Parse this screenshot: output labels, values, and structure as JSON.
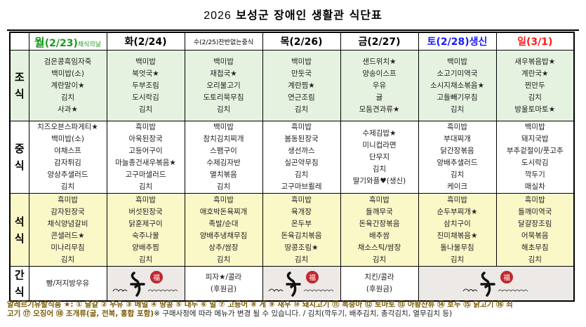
{
  "title": {
    "year": "2026",
    "text": "보성군 장애인 생활관 식단표"
  },
  "days": [
    {
      "day": "월",
      "date": "(2/23)",
      "note": "채식의날",
      "color": "#1a9a1a"
    },
    {
      "day": "화",
      "date": "(2/24)",
      "note": "",
      "color": "#000000"
    },
    {
      "day": "수",
      "date": "(2/25)",
      "note": "잔반없는중식",
      "color": "#000000"
    },
    {
      "day": "목",
      "date": "(2/26)",
      "note": "",
      "color": "#000000"
    },
    {
      "day": "금",
      "date": "(2/27)",
      "note": "",
      "color": "#000000"
    },
    {
      "day": "토",
      "date": "(2/28)",
      "note": "생신",
      "color": "#1a1aff"
    },
    {
      "day": "일",
      "date": "(3/1)",
      "note": "",
      "color": "#ff1a1a"
    }
  ],
  "meals": [
    {
      "label": "조식",
      "bg": "#e6f2e0",
      "menus": [
        [
          "검은콩흑임자죽",
          "백미밥(소)",
          "계란말이★",
          "김치",
          "사과★"
        ],
        [
          "백미밥",
          "북엇국★",
          "두부조림",
          "도시락김",
          "김치"
        ],
        [
          "백미밥",
          "재첩국★",
          "오리불고기",
          "도토리묵무침",
          "김치"
        ],
        [
          "백미밥",
          "만둣국",
          "계란찜★",
          "연근조림",
          "김치"
        ],
        [
          "샌드위치★",
          "양송이스프",
          "우유",
          "귤",
          "모둠견과류★"
        ],
        [
          "백미밥",
          "소고기미역국",
          "소시지채소볶음★",
          "고들빼기무침",
          "김치"
        ],
        [
          "새우볶음밥★",
          "계란국★",
          "찐만두",
          "김치",
          "방울토마토★"
        ]
      ]
    },
    {
      "label": "중식",
      "bg": "#ffffff",
      "menus": [
        [
          "치즈오븐스파게티★",
          "백미밥(소)",
          "야채스프",
          "감자튀김",
          "양상추샐러드",
          "김치"
        ],
        [
          "흑미밥",
          "아욱된장국",
          "고등어구이",
          "마늘종건새우볶음★",
          "고구마샐러드",
          "김치"
        ],
        [
          "백미밥",
          "참치김치찌개",
          "스팸구이",
          "수제김자반",
          "멸치볶음",
          "김치"
        ],
        [
          "흑미밥",
          "봄동된장국",
          "생선까스",
          "실곤약무침",
          "김치",
          "고구마브륄레"
        ],
        [
          "수제김밥★",
          "미니컵라면",
          "단무지",
          "김치",
          "딸기와플♥(생신)"
        ],
        [
          "흑미밥",
          "부대찌개",
          "닭간장볶음",
          "양배추샐러드",
          "김치",
          "케이크"
        ],
        [
          "백미밥",
          "돼지국밥",
          "부추겉절이/풋고추",
          "도시락김",
          "깍두기",
          "매실차"
        ]
      ]
    },
    {
      "label": "석식",
      "bg": "#fbf8c8",
      "menus": [
        [
          "흑미밥",
          "감자된장국",
          "채식양념갈비",
          "콘샐러드★",
          "미나리무침",
          "김치"
        ],
        [
          "흑미밥",
          "버섯된장국",
          "닭훈제구이",
          "숙주나물",
          "양배추찜",
          "김치"
        ],
        [
          "흑미밥",
          "애호박돈육찌개",
          "족발/순대",
          "양배추냉채무침",
          "상추/쌈장",
          "김치"
        ],
        [
          "흑미밥",
          "육개장",
          "온두부",
          "돈육김치볶음",
          "땅콩조림★",
          "김치"
        ],
        [
          "흑미밥",
          "들깨무국",
          "돈육간장볶음",
          "배추쌈",
          "채소스틱/쌈장",
          "김치"
        ],
        [
          "흑미밥",
          "순두부찌개★",
          "삼치구이",
          "진미채볶음★",
          "돌나물무침",
          "김치"
        ],
        [
          "흑미밥",
          "들깨미역국",
          "달걀장조림",
          "어묵볶음",
          "해초무침",
          "김치"
        ]
      ]
    },
    {
      "label": "간식",
      "snacks": [
        {
          "text": [
            "빵/저지방우유"
          ]
        },
        {
          "image": "blessing-calligraphy",
          "logo_text": "새해 복 많이 받으세요"
        },
        {
          "text": [
            "피자★/콜라",
            "(후원금)"
          ]
        },
        {
          "image": "blessing-calligraphy",
          "logo_text": "새해 복 많이 받으세요"
        },
        {
          "text": [
            "치킨/콜라",
            "(후원금)"
          ]
        },
        {
          "image": "blessing-calligraphy",
          "logo_text": "새해 복 많이 받으세요",
          "span": 2
        }
      ]
    }
  ],
  "footer": {
    "allergy_line1": "알레르기유발식품 ★: ① 달걀 ② 우유 ③ 메밀 ④ 땅콩 ⑤ 대두 ⑥ 밀 ⑦ 고등어 ⑧ 게 ⑨ 새우 ⑩ 돼지고기 ⑪ 복숭아 ⑫ 토마토 ⑬ 아황산류 ⑭ 호두 ⑮ 닭고기 ⑯ 쇠",
    "allergy_line2": "고기 ⑰ 오징어 ⑱ 조개류(굴, 전복, 홍합 포함)",
    "note": "※ 구매사정에 따라 메뉴가 변경 될 수 있습니다.  / 김치(깍두기, 배추김치, 총각김치, 열무김치 등)"
  }
}
